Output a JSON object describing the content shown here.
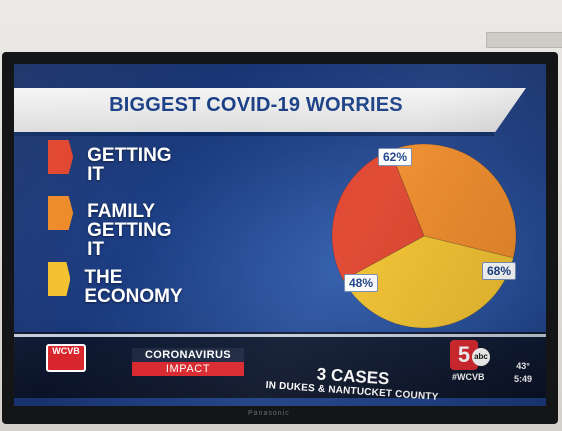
{
  "title": "BIGGEST COVID-19 WORRIES",
  "chart_data": {
    "type": "pie",
    "title": "BIGGEST COVID-19 WORRIES",
    "categories": [
      "GETTING IT",
      "FAMILY\nGETTING IT",
      "THE ECONOMY"
    ],
    "values": [
      48,
      62,
      68
    ],
    "labels": [
      "48%",
      "62%",
      "68%"
    ],
    "colors": [
      "#e0432c",
      "#ee8a28",
      "#f2c12e"
    ],
    "legend": "left"
  },
  "lower_third": {
    "logo_left": "WCVB",
    "impact_top": "CORONAVIRUS",
    "impact_bottom": "IMPACT",
    "headline": "3 CASES",
    "subline": "IN DUKES & NANTUCKET COUNTY",
    "logo_number": "5",
    "logo_abc": "abc",
    "hashtag": "#WCVB",
    "temperature": "43°",
    "time": "5:49"
  },
  "tv_brand": "Panasonic"
}
